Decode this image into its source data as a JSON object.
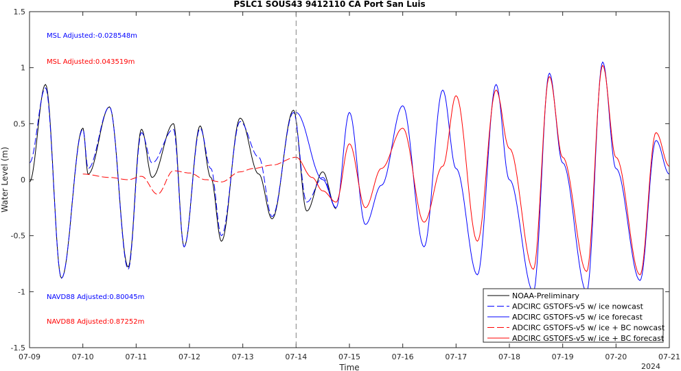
{
  "chart_data": {
    "type": "line",
    "title": "PSLC1 SOUS43 9412110 CA Port San Luis",
    "xlabel": "Time",
    "ylabel": "Water Level (m)",
    "year_label": "2024",
    "xlim_days": [
      9,
      21
    ],
    "ylim": [
      -1.5,
      1.5
    ],
    "x_tick_labels": [
      "07-09",
      "07-10",
      "07-11",
      "07-12",
      "07-13",
      "07-14",
      "07-15",
      "07-16",
      "07-17",
      "07-18",
      "07-19",
      "07-20",
      "07-21"
    ],
    "y_tick_labels": [
      "-1.5",
      "-1",
      "-0.5",
      "0",
      "0.5",
      "1",
      "1.5"
    ],
    "y_tick_values": [
      -1.5,
      -1,
      -0.5,
      0,
      0.5,
      1,
      1.5
    ],
    "nowcast_forecast_divider_day": 14,
    "annotations": {
      "msl_blue": "MSL Adjusted:-0.028548m",
      "msl_red": "MSL Adjusted:0.043519m",
      "navd_blue": "NAVD88 Adjusted:0.80045m",
      "navd_red": "NAVD88 Adjusted:0.87252m"
    },
    "colors": {
      "black": "#000000",
      "blue": "#0000ff",
      "red": "#ff0000",
      "divider": "#808080"
    },
    "legend_position": "bottom-right",
    "series": [
      {
        "name": "NOAA-Preliminary",
        "color": "#000000",
        "style": "solid",
        "x": [
          9.0,
          9.3,
          9.6,
          10.0,
          10.1,
          10.5,
          10.85,
          11.1,
          11.3,
          11.7,
          11.9,
          12.2,
          12.4,
          12.6,
          12.95,
          13.3,
          13.55,
          13.95,
          14.2,
          14.5,
          14.75
        ],
        "y": [
          -0.02,
          0.85,
          -0.88,
          0.46,
          0.05,
          0.65,
          -0.78,
          0.45,
          0.02,
          0.5,
          -0.6,
          0.48,
          0.02,
          -0.55,
          0.55,
          0.05,
          -0.35,
          0.62,
          -0.28,
          0.07,
          -0.26
        ]
      },
      {
        "name": "ADCIRC GSTOFS-v5 w/ ice nowcast",
        "color": "#0000ff",
        "style": "dashed",
        "x": [
          9.0,
          9.3,
          9.6,
          10.0,
          10.1,
          10.5,
          10.85,
          11.1,
          11.3,
          11.7,
          11.9,
          12.2,
          12.4,
          12.6,
          12.95,
          13.3,
          13.55,
          13.95,
          14.2,
          14.5,
          14.75
        ],
        "y": [
          0.15,
          0.82,
          -0.88,
          0.45,
          0.1,
          0.65,
          -0.8,
          0.42,
          0.15,
          0.45,
          -0.6,
          0.46,
          0.1,
          -0.5,
          0.52,
          0.2,
          -0.33,
          0.6,
          -0.2,
          0.02,
          -0.25
        ]
      },
      {
        "name": "ADCIRC GSTOFS-v5 w/ ice forecast",
        "color": "#0000ff",
        "style": "solid",
        "x": [
          14.0,
          14.5,
          14.75,
          15.0,
          15.3,
          15.6,
          16.0,
          16.4,
          16.75,
          17.0,
          17.4,
          17.75,
          18.0,
          18.45,
          18.75,
          19.0,
          19.45,
          19.75,
          20.0,
          20.45,
          20.75,
          21.0
        ],
        "y": [
          0.6,
          0.0,
          -0.25,
          0.6,
          -0.4,
          -0.05,
          0.66,
          -0.6,
          0.8,
          0.1,
          -0.85,
          0.85,
          0.0,
          -1.0,
          0.95,
          0.15,
          -1.0,
          1.05,
          0.1,
          -0.9,
          0.35,
          0.05
        ]
      },
      {
        "name": "ADCIRC GSTOFS-v5 w/ ice + BC nowcast",
        "color": "#ff0000",
        "style": "dashed",
        "x": [
          10.0,
          10.5,
          10.85,
          11.1,
          11.4,
          11.7,
          12.0,
          12.3,
          12.6,
          12.95,
          13.2,
          13.55,
          14.0
        ],
        "y": [
          0.05,
          0.02,
          0.0,
          0.03,
          -0.13,
          0.08,
          0.06,
          0.0,
          -0.02,
          0.07,
          0.1,
          0.13,
          0.2
        ]
      },
      {
        "name": "ADCIRC GSTOFS-v5 w/ ice + BC forecast",
        "color": "#ff0000",
        "style": "solid",
        "x": [
          14.0,
          14.3,
          14.5,
          14.75,
          15.0,
          15.3,
          15.6,
          16.0,
          16.4,
          16.75,
          17.0,
          17.4,
          17.75,
          18.0,
          18.45,
          18.75,
          19.0,
          19.45,
          19.75,
          20.0,
          20.45,
          20.75,
          21.0
        ],
        "y": [
          0.2,
          0.02,
          -0.1,
          -0.2,
          0.32,
          -0.25,
          0.1,
          0.46,
          -0.38,
          0.12,
          0.75,
          -0.55,
          0.8,
          0.28,
          -0.8,
          0.92,
          0.2,
          -0.82,
          1.02,
          0.2,
          -0.85,
          0.42,
          0.12
        ]
      }
    ]
  }
}
